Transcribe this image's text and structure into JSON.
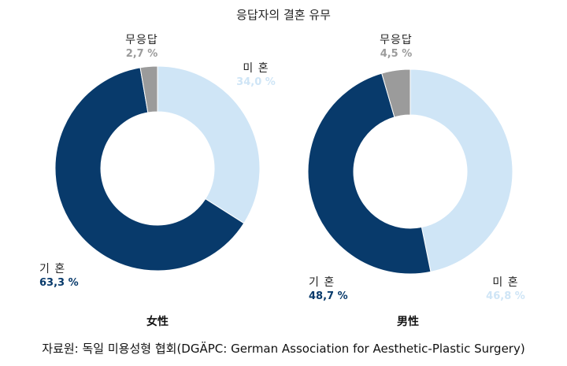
{
  "title": "응답자의 결혼 유무",
  "source": "자료원: 독일 미용성형 협회(DGÄPC: German Association for Aesthetic-Plastic Surgery)",
  "colors": {
    "married": "#083a6b",
    "single": "#cfe5f6",
    "no_answer": "#9b9b9b",
    "married_text": "#083a6b",
    "single_text": "#cfe5f6",
    "no_answer_text": "#9b9b9b"
  },
  "chart_data": [
    {
      "type": "pie",
      "title": "女性",
      "slices": [
        {
          "name": "미 혼",
          "value": 34.0,
          "label": "34,0 %",
          "key": "single"
        },
        {
          "name": "기 혼",
          "value": 63.3,
          "label": "63,3 %",
          "key": "married"
        },
        {
          "name": "무응답",
          "value": 2.7,
          "label": "2,7 %",
          "key": "no_answer"
        }
      ]
    },
    {
      "type": "pie",
      "title": "男性",
      "slices": [
        {
          "name": "미 혼",
          "value": 46.8,
          "label": "46,8 %",
          "key": "single"
        },
        {
          "name": "기 혼",
          "value": 48.7,
          "label": "48,7 %",
          "key": "married"
        },
        {
          "name": "무응답",
          "value": 4.5,
          "label": "4,5 %",
          "key": "no_answer"
        }
      ]
    }
  ]
}
